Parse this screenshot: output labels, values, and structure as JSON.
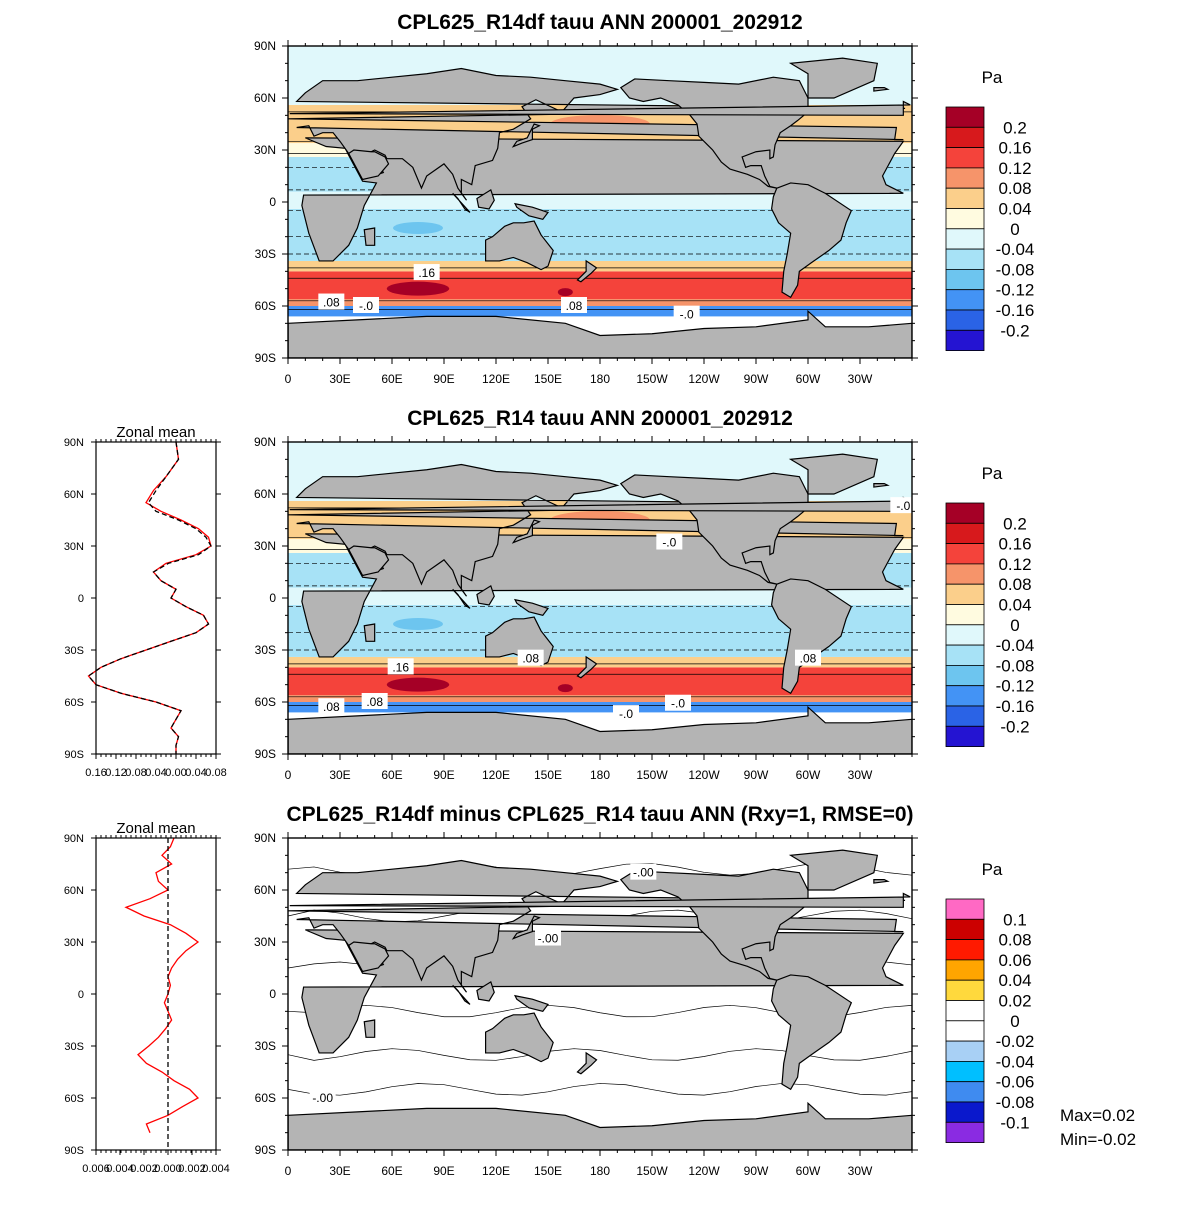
{
  "panels": [
    {
      "title": "CPL625_R14df tauu ANN 200001_202912",
      "kind": "full",
      "colorbar_unit": "Pa",
      "colorbar_labels": [
        "0.2",
        "0.16",
        "0.12",
        "0.08",
        "0.04",
        "0",
        "-0.04",
        "-0.08",
        "-0.12",
        "-0.16",
        "-0.2"
      ],
      "colorbar_colors": [
        "#a50026",
        "#d7191c",
        "#f4433b",
        "#f6946a",
        "#fbcf8b",
        "#fffbe0",
        "#e0f8fb",
        "#a7e2f6",
        "#6dc5ef",
        "#4393f5",
        "#2a63e6",
        "#2414d2"
      ],
      "contour_labels": [
        ".16",
        ".08",
        "-.0",
        ".08",
        "-.0"
      ]
    },
    {
      "title": "CPL625_R14 tauu ANN 200001_202912",
      "kind": "full",
      "colorbar_unit": "Pa",
      "colorbar_labels": [
        "0.2",
        "0.16",
        "0.12",
        "0.08",
        "0.04",
        "0",
        "-0.04",
        "-0.08",
        "-0.12",
        "-0.16",
        "-0.2"
      ],
      "colorbar_colors": [
        "#a50026",
        "#d7191c",
        "#f4433b",
        "#f6946a",
        "#fbcf8b",
        "#fffbe0",
        "#e0f8fb",
        "#a7e2f6",
        "#6dc5ef",
        "#4393f5",
        "#2a63e6",
        "#2414d2"
      ],
      "contour_labels": [
        "-.0",
        ".16",
        ".08",
        ".08",
        ".08",
        "-.0",
        ".08",
        "-.0",
        "-.0"
      ]
    },
    {
      "title": "CPL625_R14df minus CPL625_R14 tauu ANN (Rxy=1, RMSE=0)",
      "kind": "diff",
      "colorbar_unit": "Pa",
      "colorbar_labels": [
        "0.1",
        "0.08",
        "0.06",
        "0.04",
        "0.02",
        "0",
        "-0.02",
        "-0.04",
        "-0.06",
        "-0.08",
        "-0.1"
      ],
      "colorbar_colors": [
        "#ff69c4",
        "#cc0000",
        "#ff1a00",
        "#ffa500",
        "#ffd93d",
        "#ffffff",
        "#ffffff",
        "#a8d0f5",
        "#00bfff",
        "#3f8bf0",
        "#0a18cc",
        "#8a2be2"
      ],
      "contour_labels": [
        "-.00",
        "-.00",
        "-.00"
      ],
      "stats": [
        "Max=0.02",
        "Min=-0.02"
      ]
    }
  ],
  "lat_labels": [
    "90N",
    "60N",
    "30N",
    "0",
    "30S",
    "60S",
    "90S"
  ],
  "lon_labels": [
    "0",
    "30E",
    "60E",
    "90E",
    "120E",
    "150E",
    "180",
    "150W",
    "120W",
    "90W",
    "60W",
    "30W"
  ],
  "zonal": [
    {
      "title": "Zonal mean",
      "xlabels": [
        "0.16",
        "0.12",
        "0.08",
        "0.04",
        "0.00",
        "0.04",
        "0.08"
      ]
    },
    {
      "title": "Zonal mean",
      "xlabels": [
        "0.006",
        "0.004",
        "0.002",
        "0.000",
        "0.002",
        "0.004"
      ]
    }
  ],
  "chart_data": [
    {
      "type": "heatmap",
      "title": "CPL625_R14df tauu ANN 200001_202912",
      "units": "Pa",
      "xlabel": "",
      "ylabel": "",
      "levels": [
        -0.2,
        -0.16,
        -0.12,
        -0.08,
        -0.04,
        0,
        0.04,
        0.08,
        0.12,
        0.16,
        0.2
      ],
      "bands": [
        {
          "lat": [
            -90,
            -66
          ],
          "value": null
        },
        {
          "lat": [
            -66,
            -60
          ],
          "value": -0.12
        },
        {
          "lat": [
            -60,
            -56
          ],
          "value": 0.1
        },
        {
          "lat": [
            -56,
            -40
          ],
          "value": 0.16
        },
        {
          "lat": [
            -40,
            -34
          ],
          "value": 0.06
        },
        {
          "lat": [
            -34,
            -4
          ],
          "value": -0.06
        },
        {
          "lat": [
            -4,
            6
          ],
          "value": -0.02
        },
        {
          "lat": [
            6,
            26
          ],
          "value": -0.06
        },
        {
          "lat": [
            26,
            34
          ],
          "value": 0.02
        },
        {
          "lat": [
            34,
            56
          ],
          "value": 0.06
        },
        {
          "lat": [
            56,
            90
          ],
          "value": -0.02
        }
      ]
    },
    {
      "type": "heatmap",
      "title": "CPL625_R14 tauu ANN 200001_202912",
      "units": "Pa",
      "xlabel": "",
      "ylabel": "",
      "levels": [
        -0.2,
        -0.16,
        -0.12,
        -0.08,
        -0.04,
        0,
        0.04,
        0.08,
        0.12,
        0.16,
        0.2
      ],
      "bands": [
        {
          "lat": [
            -90,
            -66
          ],
          "value": null
        },
        {
          "lat": [
            -66,
            -60
          ],
          "value": -0.12
        },
        {
          "lat": [
            -60,
            -56
          ],
          "value": 0.1
        },
        {
          "lat": [
            -56,
            -40
          ],
          "value": 0.16
        },
        {
          "lat": [
            -40,
            -34
          ],
          "value": 0.06
        },
        {
          "lat": [
            -34,
            -4
          ],
          "value": -0.06
        },
        {
          "lat": [
            -4,
            6
          ],
          "value": -0.02
        },
        {
          "lat": [
            6,
            26
          ],
          "value": -0.06
        },
        {
          "lat": [
            26,
            34
          ],
          "value": 0.02
        },
        {
          "lat": [
            34,
            56
          ],
          "value": 0.06
        },
        {
          "lat": [
            56,
            90
          ],
          "value": -0.02
        }
      ]
    },
    {
      "type": "heatmap",
      "title": "CPL625_R14df minus CPL625_R14 tauu ANN (Rxy=1, RMSE=0)",
      "units": "Pa",
      "xlabel": "",
      "ylabel": "",
      "levels": [
        -0.1,
        -0.08,
        -0.06,
        -0.04,
        -0.02,
        0,
        0.02,
        0.04,
        0.06,
        0.08,
        0.1
      ],
      "max": 0.02,
      "min": -0.02
    },
    {
      "type": "line",
      "title": "Zonal mean",
      "xlabel": "",
      "ylabel": "",
      "ylim": [
        -90,
        90
      ],
      "xlim": [
        -0.16,
        0.08
      ],
      "series": [
        {
          "color": "#ff0000",
          "lat": [
            90,
            80,
            70,
            62,
            55,
            50,
            45,
            40,
            35,
            30,
            25,
            20,
            15,
            10,
            5,
            0,
            -5,
            -10,
            -15,
            -20,
            -25,
            -30,
            -35,
            -40,
            -45,
            -50,
            -55,
            -60,
            -65,
            -70,
            -75,
            -80,
            -85,
            -90
          ],
          "values": [
            0.0,
            0.005,
            -0.02,
            -0.045,
            -0.06,
            -0.03,
            0.01,
            0.045,
            0.065,
            0.07,
            0.04,
            -0.02,
            -0.045,
            -0.03,
            0.0,
            -0.01,
            0.02,
            0.055,
            0.065,
            0.04,
            -0.01,
            -0.06,
            -0.11,
            -0.15,
            -0.175,
            -0.16,
            -0.11,
            -0.04,
            0.01,
            0.0,
            -0.01,
            0.005,
            0.0,
            0.0
          ]
        },
        {
          "color": "#000000",
          "lat": [
            90,
            80,
            70,
            62,
            55,
            50,
            45,
            40,
            35,
            30,
            25,
            20,
            15,
            10,
            5,
            0,
            -5,
            -10,
            -15,
            -20,
            -25,
            -30,
            -35,
            -40,
            -45,
            -50,
            -55,
            -60,
            -65,
            -70,
            -75,
            -80,
            -85,
            -90
          ],
          "values": [
            0.0,
            0.005,
            -0.02,
            -0.04,
            -0.055,
            -0.04,
            0.005,
            0.04,
            0.06,
            0.07,
            0.045,
            -0.015,
            -0.045,
            -0.03,
            0.0,
            -0.01,
            0.02,
            0.055,
            0.065,
            0.04,
            -0.01,
            -0.06,
            -0.11,
            -0.15,
            -0.175,
            -0.16,
            -0.11,
            -0.04,
            0.01,
            0.0,
            -0.01,
            0.005,
            0.0,
            0.0
          ]
        }
      ]
    },
    {
      "type": "line",
      "title": "Zonal mean",
      "xlabel": "",
      "ylabel": "",
      "ylim": [
        -90,
        90
      ],
      "xlim": [
        -0.006,
        0.004
      ],
      "series": [
        {
          "color": "#ff0000",
          "lat": [
            90,
            85,
            80,
            75,
            70,
            65,
            60,
            55,
            50,
            45,
            40,
            35,
            30,
            25,
            20,
            15,
            10,
            5,
            0,
            -5,
            -10,
            -15,
            -20,
            -25,
            -30,
            -35,
            -40,
            -45,
            -50,
            -55,
            -60,
            -65,
            -70,
            -75,
            -80
          ],
          "values": [
            0.0005,
            0.0002,
            -0.0005,
            0.0003,
            -0.001,
            -0.0008,
            0.0,
            -0.0015,
            -0.0035,
            -0.002,
            0.0002,
            0.0015,
            0.0025,
            0.0015,
            0.0008,
            0.0003,
            0.0,
            0.0002,
            0.0,
            -0.0003,
            0.0,
            0.0003,
            -0.0002,
            -0.0008,
            -0.0016,
            -0.0025,
            -0.0018,
            -0.0005,
            0.0005,
            0.0018,
            0.0025,
            0.0012,
            0.0,
            -0.0018,
            -0.0015
          ]
        },
        {
          "color": "#000000",
          "lat": [
            90,
            -90
          ],
          "values": [
            0,
            0
          ]
        }
      ]
    }
  ]
}
